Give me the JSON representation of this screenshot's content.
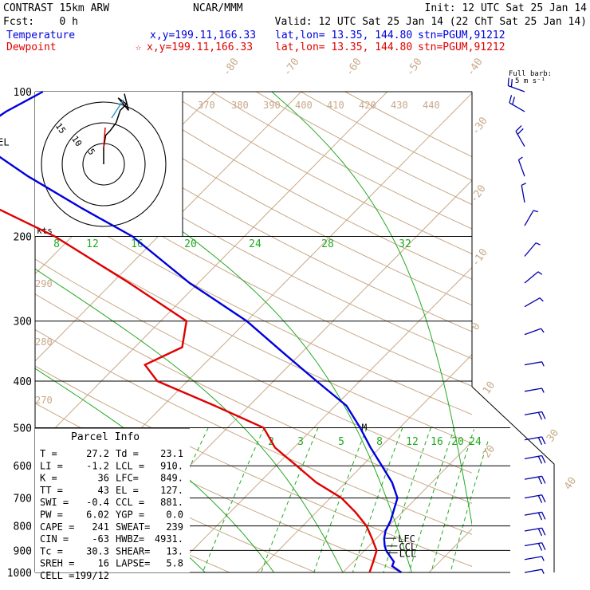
{
  "header": {
    "model": "CONTRAST 15km ARW",
    "source": "NCAR/MMM",
    "init": "Init: 12 UTC Sat 25 Jan 14",
    "fcst_label": "Fcst:",
    "fcst_value": "0 h",
    "valid": "Valid: 12 UTC Sat 25 Jan 14 (22 ChT Sat 25 Jan 14)",
    "temp_label": "Temperature",
    "temp_xy": "x,y=199.11,166.33",
    "temp_latlon": "lat,lon= 13.35, 144.80",
    "temp_stn": "stn=PGUM,91212",
    "dew_label": "Dewpoint",
    "dew_marker": "☆",
    "dew_xy": "x,y=199.11,166.33",
    "dew_latlon": "lat,lon= 13.35, 144.80",
    "dew_stn": "stn=PGUM,91212",
    "barb_legend": [
      "Full barb:",
      "5 m s⁻¹"
    ]
  },
  "colors": {
    "temperature": "#0000dd",
    "dewpoint": "#e00000",
    "isotherm": "#c8a888",
    "adiabat": "#22aa22",
    "grid": "#000000"
  },
  "hodograph": {
    "units": "kts",
    "ring_labels": [
      "5",
      "10",
      "15"
    ]
  },
  "parcel_info": {
    "title": "Parcel Info",
    "rows": [
      [
        "T   =",
        "27.2",
        "Td =",
        "23.1"
      ],
      [
        "LI  =",
        "-1.2",
        "LCL =",
        "910."
      ],
      [
        "K   =",
        "36",
        "LFC=",
        "849."
      ],
      [
        "TT  =",
        "43",
        "EL  =",
        "127."
      ],
      [
        "SWI =",
        "-0.4",
        "CCL =",
        "881."
      ],
      [
        "PW  =",
        "6.02",
        "YGP =",
        "0.0"
      ],
      [
        "CAPE =",
        "241",
        "SWEAT=",
        "239"
      ],
      [
        "CIN  =",
        "-63",
        "HWBZ=",
        "4931."
      ],
      [
        "Tc  =",
        "30.3",
        "SHEAR=",
        "13."
      ],
      [
        "SREH =",
        "16",
        "LAPSE=",
        "5.8"
      ],
      [
        "CELL =",
        "199/12",
        "",
        ""
      ]
    ]
  },
  "level_markers": {
    "el": "EL",
    "lfc": "LFC",
    "ccl": "CCL",
    "lcl": "LCL",
    "m": "M"
  },
  "chart_data": {
    "type": "line",
    "title": "Skew-T log-P sounding",
    "pressure_levels": [
      100,
      200,
      300,
      400,
      500,
      600,
      700,
      800,
      900,
      1000
    ],
    "pressure_labels": [
      "100",
      "200",
      "300",
      "400",
      "500",
      "600",
      "700",
      "800",
      "900",
      "1000"
    ],
    "isotherm_labels": [
      "-80",
      "-70",
      "-60",
      "-50",
      "-40",
      "-30",
      "-20",
      "-10",
      "0",
      "10",
      "20",
      "30",
      "40"
    ],
    "theta_labels": [
      "370",
      "380",
      "390",
      "400",
      "410",
      "420",
      "430",
      "440",
      "290",
      "280",
      "270"
    ],
    "mixing_ratio_upper": [
      "8",
      "12",
      "16",
      "20",
      "24",
      "28",
      "32"
    ],
    "mixing_ratio_lower": [
      "2",
      "3",
      "5",
      "8",
      "12",
      "16",
      "20",
      "24"
    ],
    "series": [
      {
        "name": "Temperature",
        "points": [
          [
            1000,
            26.8
          ],
          [
            970,
            25.0
          ],
          [
            950,
            24.7
          ],
          [
            925,
            23.6
          ],
          [
            900,
            22.5
          ],
          [
            880,
            21.8
          ],
          [
            850,
            20.9
          ],
          [
            820,
            20.2
          ],
          [
            780,
            19.6
          ],
          [
            700,
            17.8
          ],
          [
            650,
            15.4
          ],
          [
            600,
            12.3
          ],
          [
            550,
            8.9
          ],
          [
            500,
            5.4
          ],
          [
            450,
            1.3
          ],
          [
            400,
            -5.0
          ],
          [
            350,
            -12.0
          ],
          [
            300,
            -20.0
          ],
          [
            250,
            -31.0
          ],
          [
            200,
            -43.0
          ],
          [
            175,
            -52.0
          ],
          [
            150,
            -62.0
          ],
          [
            130,
            -70.5
          ],
          [
            120,
            -73.0
          ],
          [
            110,
            -72.0
          ],
          [
            100,
            -70.0
          ]
        ]
      },
      {
        "name": "Dewpoint",
        "points": [
          [
            1000,
            23.1
          ],
          [
            950,
            22.3
          ],
          [
            900,
            21.4
          ],
          [
            850,
            19.5
          ],
          [
            800,
            17.4
          ],
          [
            750,
            14.6
          ],
          [
            700,
            11.3
          ],
          [
            650,
            6.6
          ],
          [
            600,
            2.4
          ],
          [
            550,
            -2.2
          ],
          [
            500,
            -5.8
          ],
          [
            450,
            -14.0
          ],
          [
            400,
            -23.5
          ],
          [
            370,
            -26.8
          ],
          [
            340,
            -24.5
          ],
          [
            300,
            -27.0
          ],
          [
            250,
            -38.0
          ],
          [
            200,
            -52.0
          ],
          [
            170,
            -64.0
          ],
          [
            150,
            -73.0
          ],
          [
            130,
            -80.0
          ],
          [
            115,
            -81.5
          ],
          [
            100,
            -80.0
          ]
        ]
      }
    ],
    "wind_barbs": [
      {
        "p": 100,
        "dir": 290,
        "speed": 10
      },
      {
        "p": 110,
        "dir": 300,
        "speed": 10
      },
      {
        "p": 130,
        "dir": 330,
        "speed": 10
      },
      {
        "p": 150,
        "dir": 340,
        "speed": 5
      },
      {
        "p": 170,
        "dir": 350,
        "speed": 5
      },
      {
        "p": 190,
        "dir": 30,
        "speed": 5
      },
      {
        "p": 220,
        "dir": 40,
        "speed": 5
      },
      {
        "p": 250,
        "dir": 50,
        "speed": 5
      },
      {
        "p": 280,
        "dir": 60,
        "speed": 5
      },
      {
        "p": 320,
        "dir": 70,
        "speed": 5
      },
      {
        "p": 370,
        "dir": 80,
        "speed": 5
      },
      {
        "p": 420,
        "dir": 80,
        "speed": 5
      },
      {
        "p": 470,
        "dir": 80,
        "speed": 10
      },
      {
        "p": 530,
        "dir": 80,
        "speed": 10
      },
      {
        "p": 580,
        "dir": 80,
        "speed": 10
      },
      {
        "p": 640,
        "dir": 80,
        "speed": 10
      },
      {
        "p": 700,
        "dir": 80,
        "speed": 10
      },
      {
        "p": 760,
        "dir": 80,
        "speed": 10
      },
      {
        "p": 820,
        "dir": 80,
        "speed": 10
      },
      {
        "p": 880,
        "dir": 80,
        "speed": 10
      },
      {
        "p": 940,
        "dir": 80,
        "speed": 5
      },
      {
        "p": 1000,
        "dir": 80,
        "speed": 5
      }
    ],
    "hodograph_trace": [
      [
        0,
        0
      ],
      [
        0,
        4
      ],
      [
        0.5,
        7
      ],
      [
        1.5,
        8
      ],
      [
        3,
        10
      ],
      [
        4,
        13
      ],
      [
        5.5,
        14.5
      ],
      [
        3.5,
        16
      ],
      [
        6,
        13
      ],
      [
        5,
        17
      ]
    ]
  }
}
